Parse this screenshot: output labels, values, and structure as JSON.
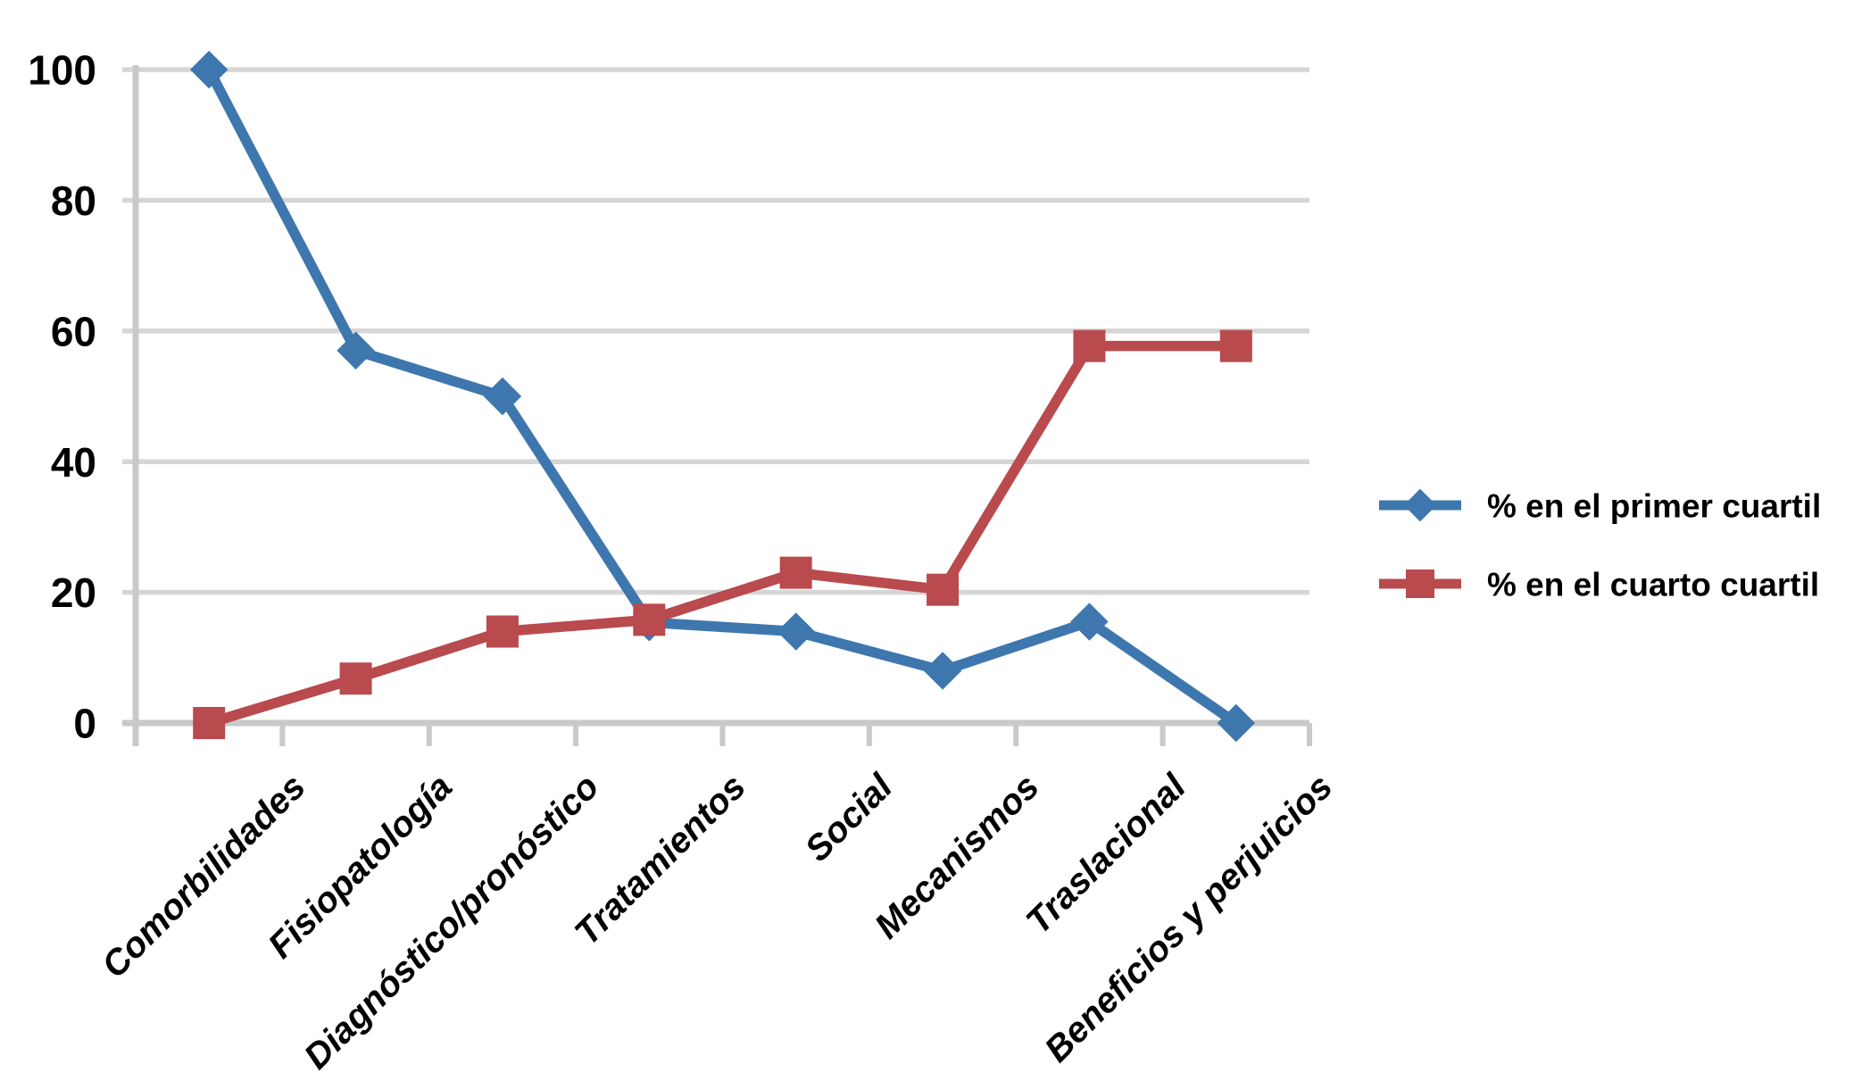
{
  "chart_data": {
    "type": "line",
    "title": "",
    "xlabel": "",
    "ylabel": "",
    "categories": [
      "Comorbilidades",
      "Fisiopatología",
      "Diagnóstico/pronóstico",
      "Tratamientos",
      "Social",
      "Mecanismos",
      "Traslacional",
      "Beneficios y perjuicios"
    ],
    "series": [
      {
        "name": "% en el primer cuartil",
        "marker": "diamond",
        "color": "#3D77AD",
        "values": [
          100,
          57,
          50,
          15.4,
          14,
          8,
          15.5,
          0
        ]
      },
      {
        "name": "% en el cuarto cuartil",
        "marker": "square",
        "color": "#B94A4D",
        "values": [
          0,
          6.8,
          14,
          15.8,
          23,
          20.4,
          57.7,
          57.7
        ]
      }
    ],
    "yticks": [
      0,
      20,
      40,
      60,
      80,
      100
    ],
    "ylim": [
      0,
      100
    ],
    "grid": true,
    "legend_position": "right-middle",
    "x_labels_rotation_deg": -45,
    "x_labels_style": "bold-italic"
  },
  "colors": {
    "series_primer_cuartil": "#3D77AD",
    "series_cuarto_cuartil": "#B94A4D",
    "gridline": "#D6D6D6",
    "axis": "#C9C9C9",
    "text": "#000000",
    "background": "#FFFFFF"
  },
  "legend": {
    "items": [
      {
        "label": "% en el primer cuartil",
        "marker": "diamond-icon",
        "color": "#3D77AD"
      },
      {
        "label": "% en el cuarto cuartil",
        "marker": "square-icon",
        "color": "#B94A4D"
      }
    ]
  }
}
